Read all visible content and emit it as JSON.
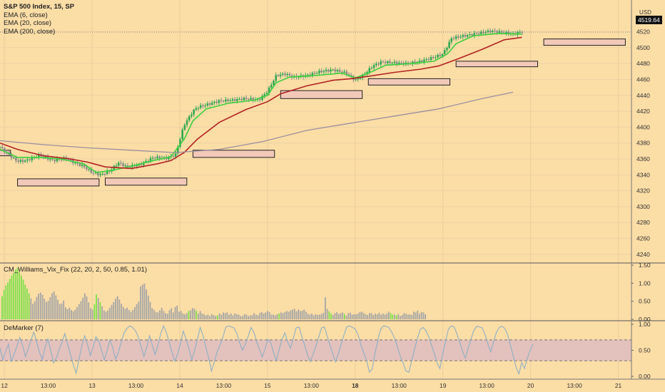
{
  "title": "S&P 500 Index, 15, SP",
  "overlays": [
    "EMA (6, close)",
    "EMA (20, close)",
    "EMA (200, close)"
  ],
  "currency": "USD",
  "last_price": "4519.64",
  "colors": {
    "background": "#fbdda6",
    "ema6": "#3ecf3e",
    "ema20": "#b22222",
    "ema200": "#9b8f9f",
    "up": "#32a852",
    "down": "#8a8a8a",
    "zone_fill": "#f2c9b8",
    "vix_high": "#7de04b",
    "vix_normal": "#a6a6a6",
    "demarker_line": "#8fb0c4",
    "demarker_band": "#e3c1bd"
  },
  "time_axis": [
    "12",
    "13:00",
    "13",
    "13:00",
    "14",
    "13:00",
    "15",
    "13:00",
    "18",
    "13:00",
    "19",
    "13:00",
    "20",
    "13:00",
    "21"
  ],
  "chart_data": [
    {
      "type": "candlestick",
      "panel": "price",
      "title": "S&P 500 Index, 15, SP",
      "ylim": [
        4230,
        4560
      ],
      "y_ticks": [
        4240,
        4260,
        4280,
        4300,
        4320,
        4340,
        4360,
        4380,
        4400,
        4420,
        4440,
        4460,
        4480,
        4500,
        4520
      ],
      "last_price": 4519.64,
      "x_range": [
        0,
        7.2
      ],
      "series": [
        {
          "name": "S&P 500 Index, 15, SP",
          "kind": "close_path",
          "x": [
            0,
            0.1,
            0.2,
            0.3,
            0.45,
            0.6,
            0.75,
            0.85,
            0.95,
            1.05,
            1.15,
            1.25,
            1.35,
            1.45,
            1.6,
            1.75,
            1.9,
            2.0,
            2.1,
            2.2,
            2.25,
            2.35,
            2.5,
            2.65,
            2.8,
            2.95,
            3.05,
            3.15,
            3.25,
            3.35,
            3.5,
            3.65,
            3.8,
            3.95,
            4.05,
            4.15,
            4.25,
            4.35,
            4.5,
            4.65,
            4.8,
            4.95,
            5.05,
            5.15,
            5.3,
            5.45,
            5.6,
            5.75,
            5.85,
            5.95
          ],
          "y": [
            4375,
            4365,
            4357,
            4358,
            4365,
            4358,
            4361,
            4355,
            4351,
            4343,
            4340,
            4345,
            4355,
            4350,
            4353,
            4362,
            4361,
            4365,
            4403,
            4420,
            4425,
            4428,
            4433,
            4434,
            4436,
            4434,
            4445,
            4465,
            4467,
            4463,
            4465,
            4470,
            4472,
            4468,
            4459,
            4466,
            4477,
            4482,
            4481,
            4480,
            4483,
            4488,
            4492,
            4512,
            4515,
            4518,
            4521,
            4519,
            4517,
            4520
          ]
        },
        {
          "name": "EMA (6, close)",
          "kind": "line",
          "x": [
            0,
            0.2,
            0.45,
            0.7,
            0.95,
            1.1,
            1.3,
            1.5,
            1.75,
            1.95,
            2.1,
            2.2,
            2.35,
            2.6,
            2.9,
            3.05,
            3.15,
            3.3,
            3.6,
            3.9,
            4.05,
            4.2,
            4.4,
            4.7,
            4.95,
            5.1,
            5.2,
            5.4,
            5.7,
            5.95
          ],
          "y": [
            4372,
            4362,
            4362,
            4360,
            4354,
            4343,
            4346,
            4351,
            4358,
            4363,
            4385,
            4408,
            4423,
            4430,
            4434,
            4440,
            4456,
            4463,
            4465,
            4468,
            4462,
            4468,
            4478,
            4480,
            4483,
            4492,
            4505,
            4515,
            4518,
            4517
          ]
        },
        {
          "name": "EMA (20, close)",
          "kind": "line",
          "x": [
            0,
            0.2,
            0.5,
            0.8,
            1.0,
            1.2,
            1.5,
            1.8,
            1.95,
            2.1,
            2.25,
            2.5,
            2.8,
            3.05,
            3.2,
            3.5,
            3.8,
            4.0,
            4.2,
            4.5,
            4.8,
            5.0,
            5.2,
            5.5,
            5.75,
            5.95
          ],
          "y": [
            4380,
            4372,
            4364,
            4360,
            4356,
            4350,
            4348,
            4354,
            4358,
            4368,
            4385,
            4406,
            4422,
            4432,
            4442,
            4452,
            4459,
            4461,
            4464,
            4469,
            4473,
            4477,
            4485,
            4498,
            4510,
            4513
          ]
        },
        {
          "name": "EMA (200, close)",
          "kind": "line",
          "x": [
            0,
            0.5,
            1.0,
            1.5,
            2.0,
            2.5,
            3.0,
            3.5,
            4.0,
            4.5,
            5.0,
            5.5,
            5.85
          ],
          "y": [
            4383,
            4378,
            4374,
            4371,
            4368,
            4372,
            4382,
            4396,
            4405,
            4414,
            4423,
            4436,
            4444
          ]
        }
      ],
      "zones": [
        {
          "x": [
            -0.1,
            0.12
          ],
          "y": [
            4364,
            4371
          ]
        },
        {
          "x": [
            0.2,
            1.13
          ],
          "y": [
            4326,
            4335
          ]
        },
        {
          "x": [
            1.2,
            2.13
          ],
          "y": [
            4327,
            4336
          ]
        },
        {
          "x": [
            2.2,
            3.13
          ],
          "y": [
            4362,
            4371
          ]
        },
        {
          "x": [
            3.2,
            4.13
          ],
          "y": [
            4436,
            4446
          ]
        },
        {
          "x": [
            4.2,
            5.13
          ],
          "y": [
            4453,
            4461
          ]
        },
        {
          "x": [
            5.2,
            6.13
          ],
          "y": [
            4476,
            4483
          ]
        },
        {
          "x": [
            6.2,
            7.13
          ],
          "y": [
            4503,
            4511
          ]
        }
      ]
    },
    {
      "type": "bar",
      "panel": "indicator",
      "title": "CM_Williams_Vix_Fix (22, 20, 2, 50, 0.85, 1.01)",
      "ylim": [
        0,
        1.5
      ],
      "y_ticks": [
        0,
        0.5,
        1.0,
        1.5
      ],
      "y_tick_labels": [
        "0.00",
        "0.50",
        "1.00",
        "1.50"
      ],
      "values": [
        0.64,
        0.81,
        0.94,
        1.02,
        1.12,
        1.21,
        1.28,
        1.38,
        1.42,
        1.31,
        1.21,
        1.1,
        0.96,
        0.85,
        0.72,
        0.58,
        0.43,
        0.5,
        0.62,
        0.71,
        0.74,
        0.68,
        0.57,
        0.48,
        0.51,
        0.61,
        0.72,
        0.77,
        0.66,
        0.54,
        0.42,
        0.44,
        0.52,
        0.33,
        0.28,
        0.32,
        0.26,
        0.22,
        0.27,
        0.34,
        0.42,
        0.5,
        0.6,
        0.72,
        0.63,
        0.47,
        0.31,
        0.27,
        0.42,
        0.69,
        0.59,
        0.47,
        0.36,
        0.25,
        0.21,
        0.25,
        0.32,
        0.4,
        0.48,
        0.57,
        0.64,
        0.55,
        0.43,
        0.34,
        0.29,
        0.32,
        0.26,
        0.21,
        0.26,
        0.34,
        0.42,
        0.49,
        0.91,
        0.96,
        0.99,
        0.83,
        0.66,
        0.48,
        0.31,
        0.26,
        0.2,
        0.19,
        0.25,
        0.32,
        0.23,
        0.17,
        0.15,
        0.25,
        0.31,
        0.19,
        0.34,
        0.38,
        0.21,
        0.23,
        0.16,
        0.14,
        0.17,
        0.23,
        0.25,
        0.31,
        0.29,
        0.24,
        0.16,
        0.23,
        0.16,
        0.14,
        0.11,
        0.13,
        0.09,
        0.14,
        0.11,
        0.09,
        0.11,
        0.16,
        0.13,
        0.19,
        0.17,
        0.19,
        0.13,
        0.16,
        0.11,
        0.16,
        0.14,
        0.13,
        0.09,
        0.09,
        0.14,
        0.13,
        0.09,
        0.11,
        0.11,
        0.17,
        0.13,
        0.11,
        0.18,
        0.2,
        0.16,
        0.19,
        0.23,
        0.2,
        0.13,
        0.13,
        0.11,
        0.14,
        0.16,
        0.19,
        0.17,
        0.2,
        0.23,
        0.21,
        0.25,
        0.27,
        0.29,
        0.22,
        0.27,
        0.23,
        0.24,
        0.27,
        0.21,
        0.15,
        0.13,
        0.16,
        0.11,
        0.14,
        0.12,
        0.13,
        0.15,
        0.18,
        0.61,
        0.29,
        0.22,
        0.16,
        0.12,
        0.17,
        0.2,
        0.15,
        0.17,
        0.19,
        0.15,
        0.1,
        0.17,
        0.18,
        0.13,
        0.14,
        0.14,
        0.16,
        0.2,
        0.21,
        0.17,
        0.14,
        0.12,
        0.17,
        0.17,
        0.12,
        0.16,
        0.14,
        0.18,
        0.13,
        0.16,
        0.13,
        0.16,
        0.21,
        0.17,
        0.13,
        0.13,
        0.11,
        0.14,
        0.09,
        0.12,
        0.17,
        0.15,
        0.13,
        0.14,
        0.12,
        0.21,
        0.19,
        0.24,
        0.15,
        0.2,
        0.19,
        0.14
      ],
      "highlight": [
        0,
        1,
        2,
        3,
        4,
        5,
        6,
        7,
        8,
        9,
        10,
        11,
        12,
        13,
        14,
        48,
        49,
        51,
        97,
        101,
        112,
        144,
        170,
        171,
        178,
        202,
        203,
        205
      ],
      "note": "bars above the threshold are drawn bright green"
    },
    {
      "type": "line",
      "panel": "indicator",
      "title": "DeMarker (7)",
      "ylim": [
        0,
        1.0
      ],
      "y_ticks": [
        0,
        0.5,
        1.0
      ],
      "y_tick_labels": [
        "0.00",
        "0.50",
        "1.00"
      ],
      "bands": [
        0.3,
        0.7
      ],
      "values": [
        0.55,
        0.32,
        0.48,
        0.62,
        0.28,
        0.43,
        0.58,
        0.75,
        0.6,
        0.38,
        0.52,
        0.7,
        0.85,
        0.66,
        0.46,
        0.32,
        0.56,
        0.72,
        0.49,
        0.26,
        0.35,
        0.52,
        0.66,
        0.82,
        0.61,
        0.42,
        0.22,
        0.06,
        0.32,
        0.58,
        0.78,
        0.62,
        0.4,
        0.55,
        0.76,
        0.69,
        0.5,
        0.32,
        0.5,
        0.7,
        0.55,
        0.33,
        0.46,
        0.67,
        0.83,
        0.92,
        0.97,
        0.94,
        0.88,
        0.76,
        0.58,
        0.38,
        0.55,
        0.78,
        0.6,
        0.42,
        0.6,
        0.82,
        0.97,
        0.84,
        0.66,
        0.46,
        0.29,
        0.43,
        0.64,
        0.87,
        0.71,
        0.53,
        0.32,
        0.49,
        0.72,
        0.94,
        0.78,
        0.56,
        0.35,
        0.1,
        0.28,
        0.47,
        0.6,
        0.74,
        0.94,
        0.97,
        0.95,
        0.93,
        0.82,
        0.64,
        0.5,
        0.62,
        0.77,
        0.94,
        0.85,
        0.67,
        0.52,
        0.37,
        0.53,
        0.71,
        0.65,
        0.46,
        0.3,
        0.52,
        0.71,
        0.84,
        0.66,
        0.54,
        0.72,
        0.93,
        0.95,
        0.77,
        0.6,
        0.42,
        0.28,
        0.42,
        0.58,
        0.75,
        0.93,
        0.95,
        0.78,
        0.6,
        0.43,
        0.28,
        0.44,
        0.62,
        0.8,
        0.95,
        0.97,
        0.94,
        0.91,
        0.79,
        0.6,
        0.45,
        0.3,
        0.08,
        0.14,
        0.45,
        0.7,
        0.91,
        0.97,
        0.96,
        0.93,
        0.84,
        0.72,
        0.55,
        0.38,
        0.25,
        0.1,
        0.08,
        0.3,
        0.52,
        0.73,
        0.9,
        0.94,
        0.88,
        0.76,
        0.6,
        0.44,
        0.26,
        0.15,
        0.43,
        0.68,
        0.9,
        0.97,
        0.95,
        0.82,
        0.66,
        0.48,
        0.35,
        0.54,
        0.71,
        0.88,
        0.96,
        0.95,
        0.93,
        0.8,
        0.62,
        0.47,
        0.66,
        0.84,
        0.94,
        0.96,
        0.92,
        0.8,
        0.6,
        0.39,
        0.17,
        0.05,
        0.26,
        0.15,
        0.35,
        0.5,
        0.62
      ]
    }
  ]
}
